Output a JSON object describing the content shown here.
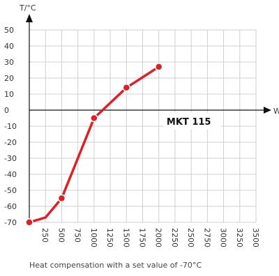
{
  "caption": "Heat compensation with a set value of -70°C",
  "chart_data": {
    "type": "line",
    "xlabel": "W",
    "ylabel": "T/°C",
    "xlim": [
      0,
      3500
    ],
    "ylim": [
      -70,
      50
    ],
    "x_ticks": [
      250,
      500,
      750,
      1000,
      1250,
      1500,
      1750,
      2000,
      2250,
      2500,
      2750,
      3000,
      3250,
      3500
    ],
    "x_tick_labels": [
      "250",
      "500",
      "750",
      "1000",
      "1250",
      "1500",
      "1750",
      "2000",
      "2250",
      "2500",
      "2750",
      "3000",
      "3250",
      "3500"
    ],
    "y_ticks": [
      -70,
      -60,
      -50,
      -40,
      -30,
      -20,
      -10,
      0,
      10,
      20,
      30,
      40,
      50
    ],
    "y_tick_labels": [
      "-70",
      "-60",
      "-50",
      "-40",
      "-30",
      "-20",
      "-10",
      "0",
      "10",
      "20",
      "30",
      "40",
      "50"
    ],
    "grid": true,
    "series": [
      {
        "color": "#dd1f26",
        "x": [
          0,
          250,
          500,
          1000,
          1500,
          2000
        ],
        "y": [
          -70,
          -67,
          -55,
          -5,
          14,
          27
        ],
        "markers": [
          true,
          false,
          true,
          true,
          true,
          true
        ]
      }
    ],
    "annotations": [
      {
        "text": "MKT 115",
        "x": 2250,
        "y": -6
      }
    ]
  }
}
